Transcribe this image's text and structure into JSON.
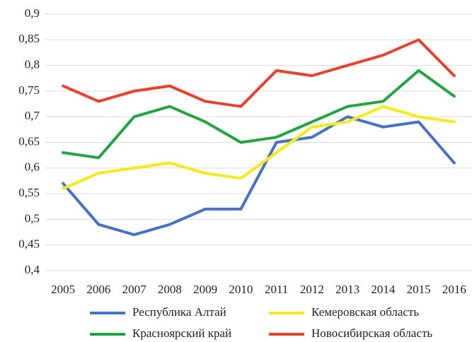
{
  "chart_data": {
    "type": "line",
    "categories": [
      "2005",
      "2006",
      "2007",
      "2008",
      "2009",
      "2010",
      "2011",
      "2012",
      "2013",
      "2014",
      "2015",
      "2016"
    ],
    "series": [
      {
        "name": "Республика Алтай",
        "color": "#4472c4",
        "values": [
          0.57,
          0.49,
          0.47,
          0.49,
          0.52,
          0.52,
          0.65,
          0.66,
          0.7,
          0.68,
          0.69,
          0.61
        ]
      },
      {
        "name": "Кемеровская область",
        "color": "#f7ea1a",
        "values": [
          0.56,
          0.59,
          0.6,
          0.61,
          0.59,
          0.58,
          0.63,
          0.68,
          0.69,
          0.72,
          0.7,
          0.69
        ]
      },
      {
        "name": "Красноярский край",
        "color": "#22a540",
        "values": [
          0.63,
          0.62,
          0.7,
          0.72,
          0.69,
          0.65,
          0.66,
          0.69,
          0.72,
          0.73,
          0.79,
          0.74
        ]
      },
      {
        "name": "Новосибирская область",
        "color": "#e8422a",
        "values": [
          0.76,
          0.73,
          0.75,
          0.76,
          0.73,
          0.72,
          0.79,
          0.78,
          0.8,
          0.82,
          0.85,
          0.78
        ]
      }
    ],
    "ylim": [
      0.4,
      0.9
    ],
    "yticks": [
      {
        "value": 0.4,
        "label": "0,4"
      },
      {
        "value": 0.45,
        "label": "0,45"
      },
      {
        "value": 0.5,
        "label": "0,5"
      },
      {
        "value": 0.55,
        "label": "0,55"
      },
      {
        "value": 0.6,
        "label": "0,6"
      },
      {
        "value": 0.65,
        "label": "0,65"
      },
      {
        "value": 0.7,
        "label": "0,7"
      },
      {
        "value": 0.75,
        "label": "0,75"
      },
      {
        "value": 0.8,
        "label": "0,8"
      },
      {
        "value": 0.85,
        "label": "0,85"
      },
      {
        "value": 0.9,
        "label": "0,9"
      }
    ],
    "grid": true,
    "legend": "bottom"
  }
}
